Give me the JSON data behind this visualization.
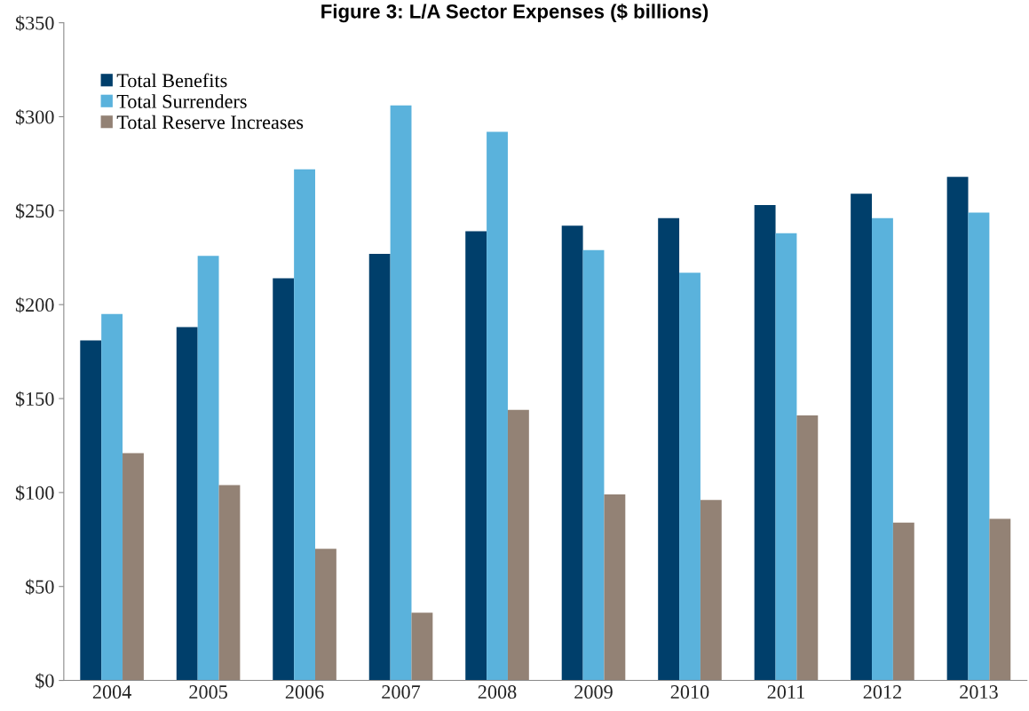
{
  "chart_data": {
    "type": "bar",
    "title": "Figure 3: L/A Sector Expenses ($ billions)",
    "categories": [
      "2004",
      "2005",
      "2006",
      "2007",
      "2008",
      "2009",
      "2010",
      "2011",
      "2012",
      "2013"
    ],
    "series": [
      {
        "name": "Total Benefits",
        "color": "#003f6b",
        "values": [
          181,
          188,
          214,
          227,
          239,
          242,
          246,
          253,
          259,
          268
        ]
      },
      {
        "name": "Total Surrenders",
        "color": "#5ab2dc",
        "values": [
          195,
          226,
          272,
          306,
          292,
          229,
          217,
          238,
          246,
          249
        ]
      },
      {
        "name": "Total Reserve Increases",
        "color": "#938275",
        "values": [
          121,
          104,
          70,
          36,
          144,
          99,
          96,
          141,
          84,
          86
        ]
      }
    ],
    "ylim": [
      0,
      350
    ],
    "yticks": [
      {
        "value": 0,
        "label": "$0"
      },
      {
        "value": 50,
        "label": "$50"
      },
      {
        "value": 100,
        "label": "$100"
      },
      {
        "value": 150,
        "label": "$150"
      },
      {
        "value": 200,
        "label": "$200"
      },
      {
        "value": 250,
        "label": "$250"
      },
      {
        "value": 300,
        "label": "$300"
      },
      {
        "value": 350,
        "label": "$350"
      }
    ],
    "grid": false,
    "legend": "top left"
  }
}
